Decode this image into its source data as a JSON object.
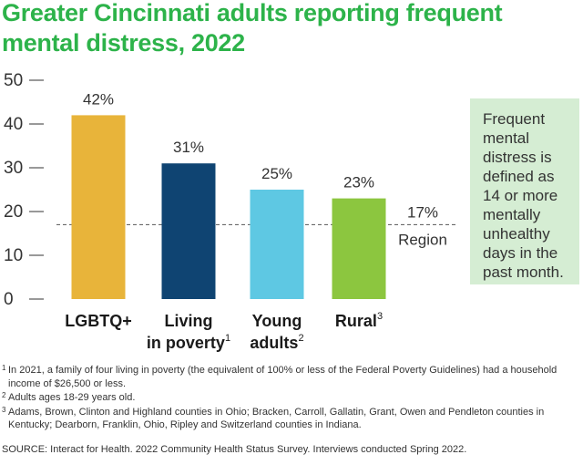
{
  "title": "Greater Cincinnati adults reporting frequent mental distress, 2022",
  "note": "Frequent mental distress is defined as 14 or more mentally unhealthy days in the past month.",
  "footnotes": [
    {
      "mark": "1",
      "text": "In 2021, a family of four living in poverty (the equivalent of 100% or less of the Federal Poverty Guidelines) had a household income of $26,500 or less."
    },
    {
      "mark": "2",
      "text": "Adults ages 18-29 years old."
    },
    {
      "mark": "3",
      "text": "Adams, Brown, Clinton and Highland counties in Ohio; Bracken, Carroll, Gallatin, Grant, Owen and Pendleton counties in Kentucky; Dearborn, Franklin, Ohio, Ripley and Switzerland counties in Indiana."
    }
  ],
  "source": "SOURCE: Interact for Health. 2022 Community Health Status Survey. Interviews conducted Spring 2022.",
  "colors": {
    "title": "#2db34a",
    "bars": [
      "#e8b43a",
      "#0f4472",
      "#5ec8e3",
      "#8cc63f"
    ],
    "axis": "#555555"
  },
  "chart_data": {
    "type": "bar",
    "title": "Greater Cincinnati adults reporting frequent mental distress, 2022",
    "xlabel": "",
    "ylabel": "",
    "ylim": [
      0,
      50
    ],
    "yticks": [
      0,
      10,
      20,
      30,
      40,
      50
    ],
    "categories": [
      {
        "lines": [
          "LGBTQ+"
        ],
        "sup": ""
      },
      {
        "lines": [
          "Living",
          "in poverty"
        ],
        "sup": "1"
      },
      {
        "lines": [
          "Young",
          "adults"
        ],
        "sup": "2"
      },
      {
        "lines": [
          "Rural"
        ],
        "sup": "3"
      }
    ],
    "values": [
      42,
      31,
      25,
      23
    ],
    "value_labels": [
      "42%",
      "31%",
      "25%",
      "23%"
    ],
    "reference_line": {
      "value": 17,
      "label": "17%",
      "sublabel": "Region"
    }
  }
}
